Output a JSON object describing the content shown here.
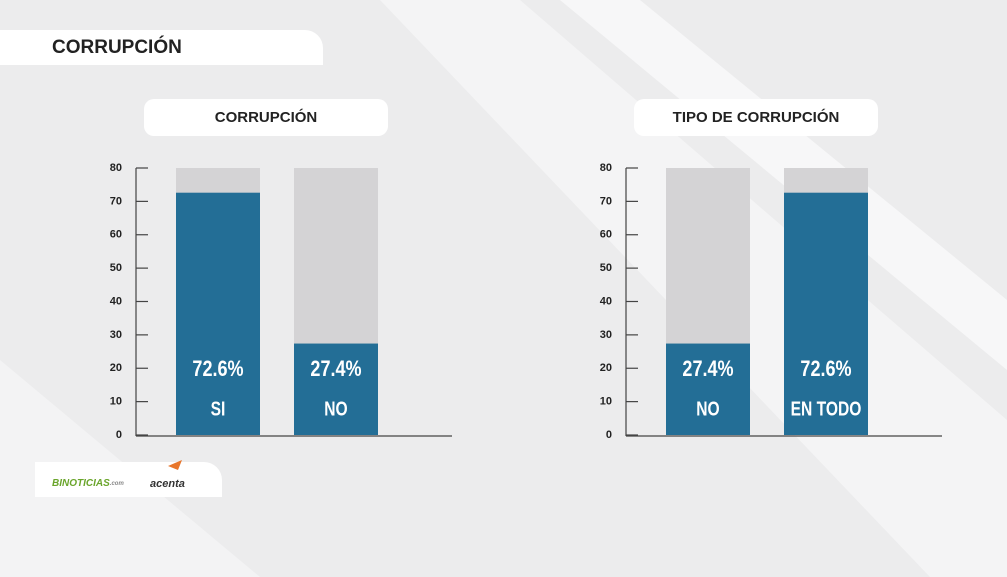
{
  "header": {
    "title": "CORRUPCIÓN"
  },
  "footer": {
    "logo_left": "BINOTICIAS",
    "logo_left_suffix": ".com",
    "logo_right": "acenta"
  },
  "chart_data": [
    {
      "type": "bar",
      "title": "CORRUPCIÓN",
      "categories": [
        "SI",
        "NO"
      ],
      "values": [
        72.6,
        27.4
      ],
      "value_labels": [
        "72.6%",
        "27.4%"
      ],
      "color": "#236e96",
      "track_color": "#d4d3d5",
      "ylim": [
        0,
        80
      ],
      "yticks": [
        0,
        10,
        20,
        30,
        40,
        50,
        60,
        70,
        80
      ]
    },
    {
      "type": "bar",
      "title": "TIPO DE CORRUPCIÓN",
      "categories": [
        "NO",
        "EN TODO"
      ],
      "values": [
        27.4,
        72.6
      ],
      "value_labels": [
        "27.4%",
        "72.6%"
      ],
      "color": "#236e96",
      "track_color": "#d4d3d5",
      "ylim": [
        0,
        80
      ],
      "yticks": [
        0,
        10,
        20,
        30,
        40,
        50,
        60,
        70,
        80
      ]
    }
  ]
}
